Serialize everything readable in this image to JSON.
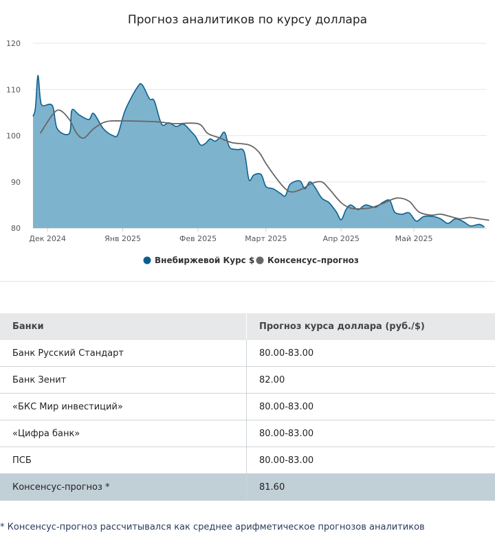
{
  "chart_data": {
    "type": "area",
    "title": "Прогноз аналитиков по курсу доллара",
    "xlabel": "",
    "ylabel": "",
    "ylim": [
      80,
      120
    ],
    "yticks": [
      "80",
      "90",
      "100",
      "110",
      "120"
    ],
    "grid": true,
    "legend_position": "bottom",
    "x_tick_labels": [
      "Дек 2024",
      "Янв 2025",
      "Фев 2025",
      "Март 2025",
      "Апр 2025",
      "Май 2025"
    ],
    "x_range": [
      "2024-11-25",
      "2025-05-31"
    ],
    "series": [
      {
        "name": "Внебиржевой Курс $",
        "color": "#0b5f8f",
        "fill": "#7eb3cd",
        "points": [
          [
            "2024-11-25",
            104.2
          ],
          [
            "2024-11-26",
            106.0
          ],
          [
            "2024-11-27",
            113.0
          ],
          [
            "2024-11-28",
            108.0
          ],
          [
            "2024-11-29",
            106.5
          ],
          [
            "2024-12-03",
            106.5
          ],
          [
            "2024-12-05",
            101.5
          ],
          [
            "2024-12-10",
            100.5
          ],
          [
            "2024-12-11",
            105.5
          ],
          [
            "2024-12-14",
            104.5
          ],
          [
            "2024-12-18",
            103.5
          ],
          [
            "2024-12-20",
            104.8
          ],
          [
            "2024-12-24",
            101.5
          ],
          [
            "2024-12-28",
            100.0
          ],
          [
            "2024-12-30",
            100.3
          ],
          [
            "2025-01-02",
            105.5
          ],
          [
            "2025-01-07",
            110.5
          ],
          [
            "2025-01-09",
            111.0
          ],
          [
            "2025-01-12",
            108.0
          ],
          [
            "2025-01-14",
            107.5
          ],
          [
            "2025-01-17",
            102.5
          ],
          [
            "2025-01-20",
            102.8
          ],
          [
            "2025-01-23",
            102.0
          ],
          [
            "2025-01-26",
            102.5
          ],
          [
            "2025-01-29",
            101.0
          ],
          [
            "2025-01-31",
            99.8
          ],
          [
            "2025-02-02",
            98.0
          ],
          [
            "2025-02-04",
            98.3
          ],
          [
            "2025-02-06",
            99.3
          ],
          [
            "2025-02-08",
            98.8
          ],
          [
            "2025-02-10",
            99.6
          ],
          [
            "2025-02-12",
            100.7
          ],
          [
            "2025-02-14",
            97.5
          ],
          [
            "2025-02-17",
            97.0
          ],
          [
            "2025-02-20",
            96.5
          ],
          [
            "2025-02-22",
            90.5
          ],
          [
            "2025-02-24",
            91.5
          ],
          [
            "2025-02-27",
            91.6
          ],
          [
            "2025-03-01",
            89.0
          ],
          [
            "2025-03-04",
            88.5
          ],
          [
            "2025-03-07",
            87.5
          ],
          [
            "2025-03-09",
            87.0
          ],
          [
            "2025-03-11",
            89.5
          ],
          [
            "2025-03-15",
            90.2
          ],
          [
            "2025-03-17",
            88.5
          ],
          [
            "2025-03-19",
            90.0
          ],
          [
            "2025-03-21",
            89.0
          ],
          [
            "2025-03-24",
            86.5
          ],
          [
            "2025-03-27",
            85.5
          ],
          [
            "2025-03-30",
            83.5
          ],
          [
            "2025-04-01",
            81.8
          ],
          [
            "2025-04-03",
            84.0
          ],
          [
            "2025-04-05",
            85.0
          ],
          [
            "2025-04-08",
            84.0
          ],
          [
            "2025-04-11",
            85.0
          ],
          [
            "2025-04-15",
            84.5
          ],
          [
            "2025-04-18",
            85.5
          ],
          [
            "2025-04-21",
            86.0
          ],
          [
            "2025-04-23",
            83.5
          ],
          [
            "2025-04-26",
            83.0
          ],
          [
            "2025-04-29",
            83.3
          ],
          [
            "2025-05-02",
            81.5
          ],
          [
            "2025-05-05",
            82.5
          ],
          [
            "2025-05-09",
            82.5
          ],
          [
            "2025-05-12",
            82.0
          ],
          [
            "2025-05-15",
            81.0
          ],
          [
            "2025-05-18",
            82.0
          ],
          [
            "2025-05-21",
            81.5
          ],
          [
            "2025-05-24",
            80.5
          ],
          [
            "2025-05-26",
            80.6
          ],
          [
            "2025-05-28",
            80.8
          ],
          [
            "2025-05-30",
            80.3
          ]
        ]
      },
      {
        "name": "Консенсус–прогноз",
        "color": "#666666",
        "points": [
          [
            "2024-11-28",
            100.5
          ],
          [
            "2024-12-03",
            104.5
          ],
          [
            "2024-12-06",
            105.5
          ],
          [
            "2024-12-10",
            103.5
          ],
          [
            "2024-12-13",
            100.5
          ],
          [
            "2024-12-16",
            99.5
          ],
          [
            "2024-12-20",
            101.5
          ],
          [
            "2024-12-25",
            103.0
          ],
          [
            "2025-01-01",
            103.2
          ],
          [
            "2025-01-15",
            103.0
          ],
          [
            "2025-01-22",
            102.6
          ],
          [
            "2025-02-01",
            102.6
          ],
          [
            "2025-02-05",
            100.5
          ],
          [
            "2025-02-10",
            99.5
          ],
          [
            "2025-02-15",
            98.5
          ],
          [
            "2025-02-22",
            98.0
          ],
          [
            "2025-02-26",
            96.5
          ],
          [
            "2025-03-01",
            94.0
          ],
          [
            "2025-03-05",
            91.0
          ],
          [
            "2025-03-09",
            88.5
          ],
          [
            "2025-03-12",
            87.8
          ],
          [
            "2025-03-16",
            88.5
          ],
          [
            "2025-03-20",
            89.7
          ],
          [
            "2025-03-24",
            90.0
          ],
          [
            "2025-03-27",
            88.5
          ],
          [
            "2025-04-01",
            85.5
          ],
          [
            "2025-04-05",
            84.3
          ],
          [
            "2025-04-10",
            84.2
          ],
          [
            "2025-04-14",
            84.5
          ],
          [
            "2025-04-19",
            85.5
          ],
          [
            "2025-04-24",
            86.5
          ],
          [
            "2025-04-29",
            85.8
          ],
          [
            "2025-05-03",
            83.5
          ],
          [
            "2025-05-08",
            82.8
          ],
          [
            "2025-05-12",
            83.0
          ],
          [
            "2025-05-16",
            82.5
          ],
          [
            "2025-05-20",
            82.0
          ],
          [
            "2025-05-24",
            82.3
          ],
          [
            "2025-05-28",
            82.0
          ],
          [
            "2025-06-01",
            81.7
          ]
        ]
      }
    ]
  },
  "table": {
    "headers": [
      "Банки",
      "Прогноз курса доллара (руб./$)"
    ],
    "rows": [
      {
        "bank": "Банк Русский Стандарт",
        "forecast": "80.00-83.00"
      },
      {
        "bank": "Банк Зенит",
        "forecast": "82.00"
      },
      {
        "bank": "«БКС Мир инвестиций»",
        "forecast": "80.00-83.00"
      },
      {
        "bank": "«Цифра банк»",
        "forecast": "80.00-83.00"
      },
      {
        "bank": "ПСБ",
        "forecast": "80.00-83.00"
      }
    ],
    "consensus": {
      "bank": "Консенсус-прогноз *",
      "forecast": "81.60"
    }
  },
  "footnote": "* Консенсус-прогноз рассчитывался как среднее арифметическое прогнозов аналитиков"
}
